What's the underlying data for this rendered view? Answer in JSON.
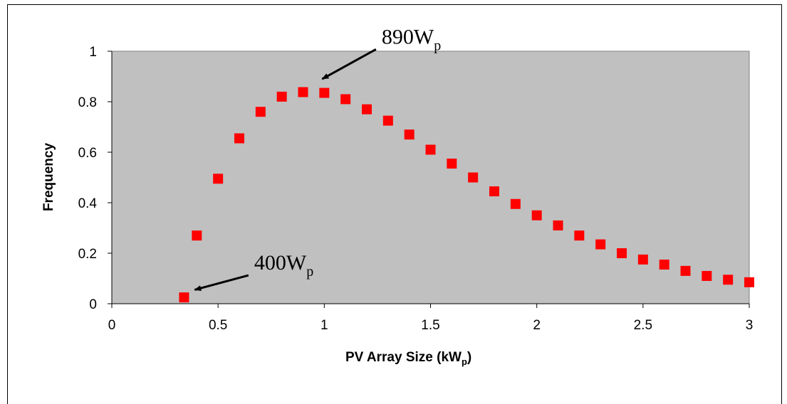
{
  "chart_data": {
    "type": "scatter",
    "title": "",
    "xlabel": "PV Array Size (kW",
    "xlabel_sub": "p",
    "xlabel_close": ")",
    "ylabel": "Frequency",
    "xlim": [
      0,
      3
    ],
    "ylim": [
      0,
      1
    ],
    "x_ticks": [
      "0",
      "0.5",
      "1",
      "1.5",
      "2",
      "2.5",
      "3"
    ],
    "y_ticks": [
      "0",
      "0.2",
      "0.4",
      "0.6",
      "0.8",
      "1"
    ],
    "grid": false,
    "plot_background": "#c0c0c0",
    "marker_color": "#ff0000",
    "marker_shape": "square",
    "series": [
      {
        "x": [
          0.34,
          0.4,
          0.5,
          0.6,
          0.7,
          0.8,
          0.9,
          1.0,
          1.1,
          1.2,
          1.3,
          1.4,
          1.5,
          1.6,
          1.7,
          1.8,
          1.9,
          2.0,
          2.1,
          2.2,
          2.3,
          2.4,
          2.5,
          2.6,
          2.7,
          2.8,
          2.9,
          3.0
        ],
        "y": [
          0.025,
          0.27,
          0.495,
          0.655,
          0.76,
          0.82,
          0.838,
          0.835,
          0.81,
          0.77,
          0.725,
          0.67,
          0.61,
          0.555,
          0.5,
          0.445,
          0.395,
          0.35,
          0.31,
          0.27,
          0.235,
          0.2,
          0.175,
          0.155,
          0.13,
          0.11,
          0.095,
          0.085
        ]
      }
    ],
    "annotations": [
      {
        "text": "890W",
        "sub": "p",
        "point_x": 0.99,
        "point_y": 0.89,
        "text_x": 1.27,
        "text_y": 1.03
      },
      {
        "text": "400W",
        "sub": "p",
        "point_x": 0.39,
        "point_y": 0.055,
        "text_x": 0.67,
        "text_y": 0.135
      }
    ]
  }
}
